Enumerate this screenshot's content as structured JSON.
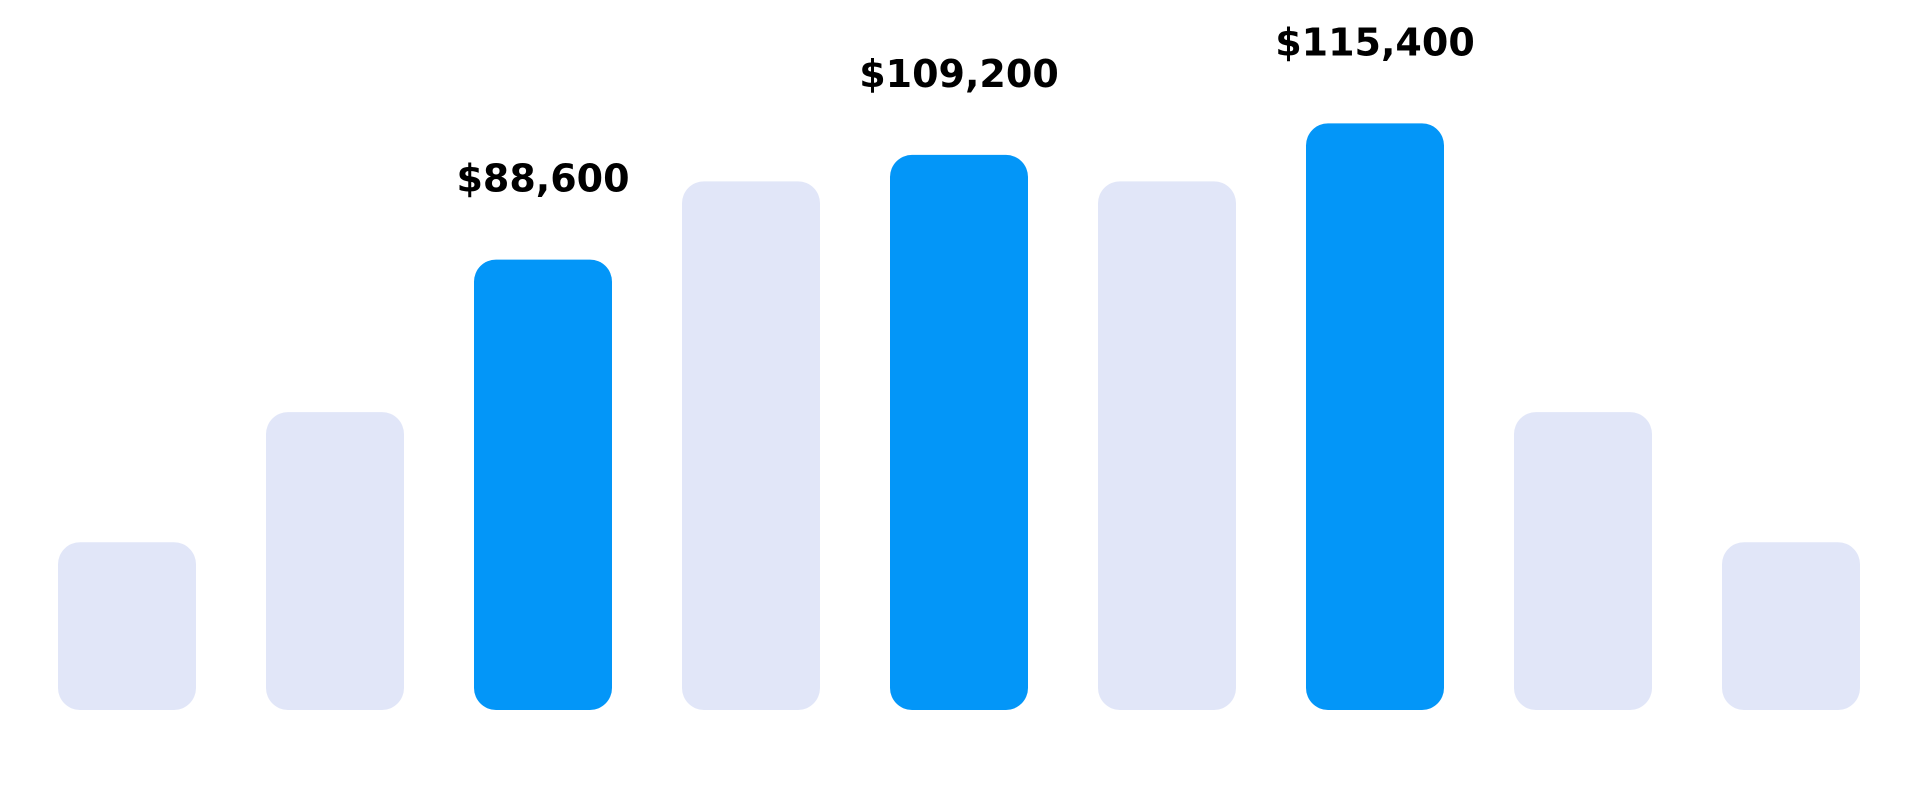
{
  "chart_data": {
    "type": "bar",
    "title": "",
    "xlabel": "",
    "ylabel": "",
    "grid": false,
    "legend": "none",
    "ylim": [
      0,
      120000
    ],
    "categories": [
      "",
      "",
      "",
      "",
      "",
      "",
      "",
      "",
      ""
    ],
    "values": [
      33000,
      58600,
      88600,
      104000,
      109200,
      104000,
      115400,
      58600,
      33000
    ],
    "highlighted": [
      false,
      false,
      true,
      false,
      true,
      false,
      true,
      false,
      false
    ],
    "labels": [
      "",
      "",
      "$88,600",
      "",
      "$109,200",
      "",
      "$115,400",
      "",
      ""
    ],
    "colors": {
      "highlight": "#0396f8",
      "muted": "#e1e6f8",
      "label": "#000000",
      "background": "#ffffff"
    }
  }
}
